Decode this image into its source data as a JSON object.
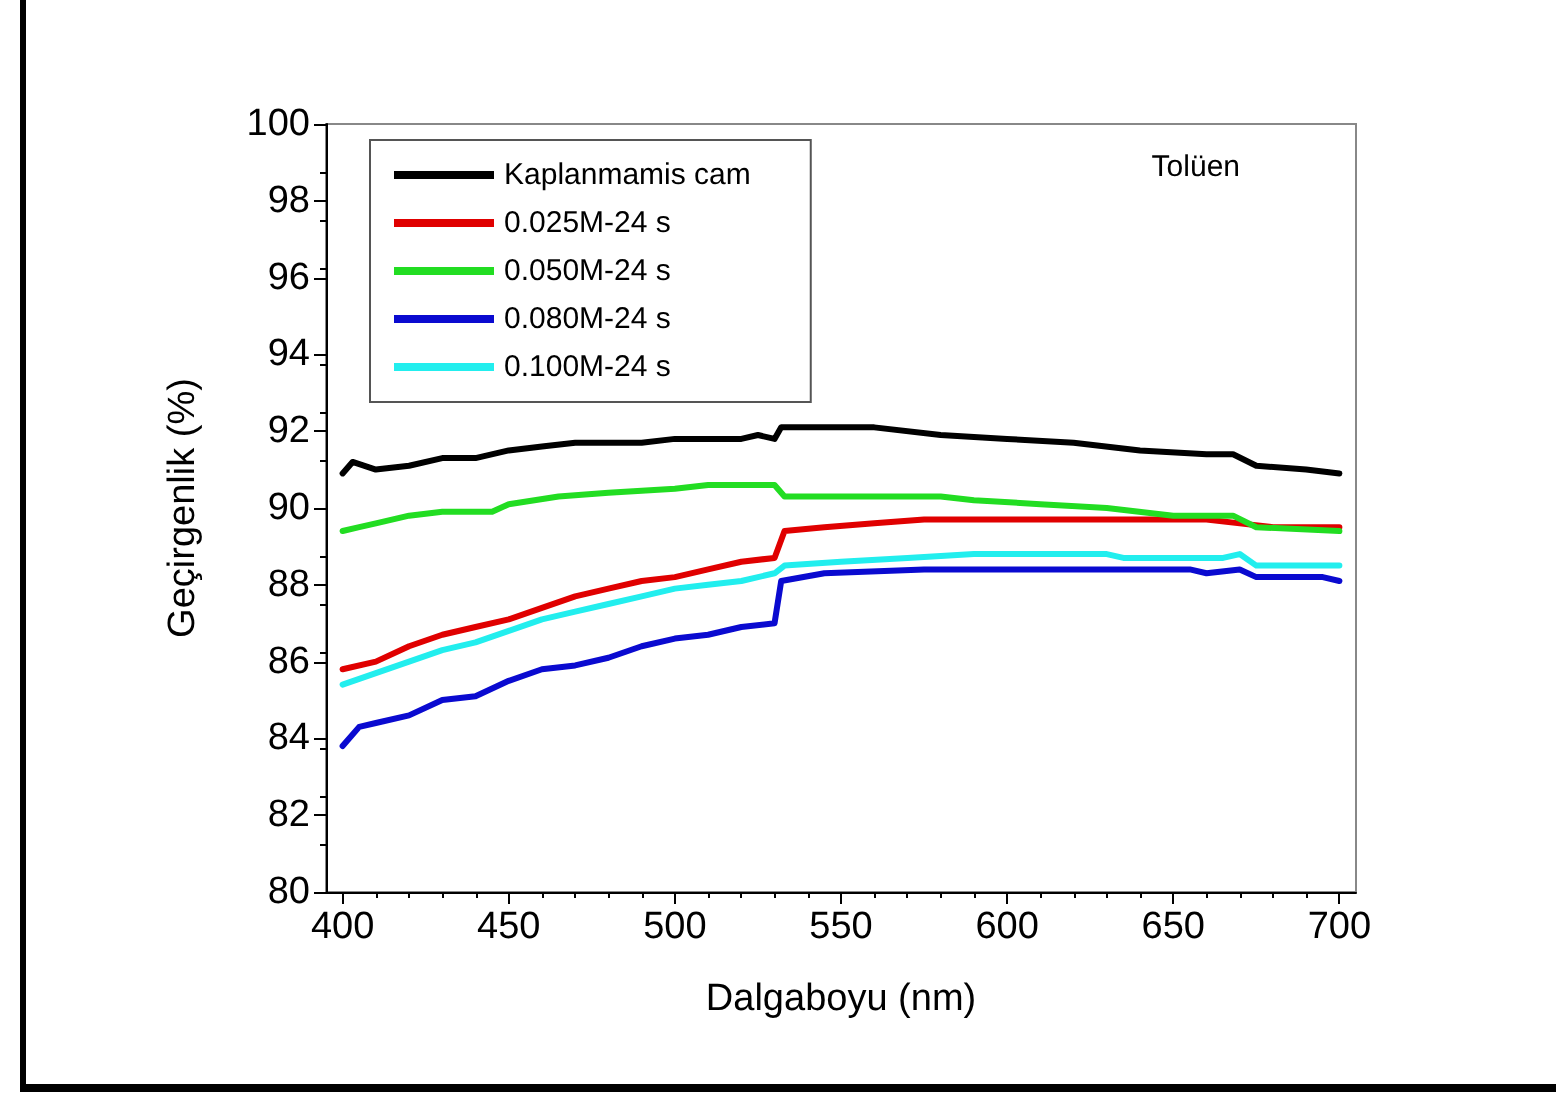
{
  "chart_data": {
    "type": "line",
    "xlabel": "Dalgaboyu (nm)",
    "ylabel": "Geçirgenlik (%)",
    "annotations": [
      "Tolüen"
    ],
    "xlim": [
      395,
      705
    ],
    "xticks": [
      400,
      450,
      500,
      550,
      600,
      650,
      700
    ],
    "ylim": [
      80,
      100
    ],
    "yticks": [
      80,
      82,
      84,
      86,
      88,
      90,
      92,
      94,
      96,
      98,
      100
    ],
    "grid": false,
    "legend": "top left",
    "marker": "none",
    "line_style": "solid",
    "series": [
      {
        "name": "Kaplanmamis cam",
        "color": "#000000",
        "x": [
          400,
          403,
          410,
          420,
          430,
          440,
          450,
          460,
          470,
          490,
          500,
          520,
          525,
          530,
          532,
          560,
          580,
          600,
          620,
          640,
          660,
          668,
          675,
          690,
          700
        ],
        "values": [
          90.9,
          91.2,
          91.0,
          91.1,
          91.3,
          91.3,
          91.5,
          91.6,
          91.7,
          91.7,
          91.8,
          91.8,
          91.9,
          91.8,
          92.1,
          92.1,
          91.9,
          91.8,
          91.7,
          91.5,
          91.4,
          91.4,
          91.1,
          91.0,
          90.9
        ]
      },
      {
        "name": "0.025M-24 s",
        "color": "#e00000",
        "x": [
          400,
          410,
          420,
          430,
          440,
          450,
          460,
          470,
          480,
          490,
          500,
          510,
          520,
          530,
          533,
          545,
          560,
          575,
          600,
          660,
          670,
          680,
          700
        ],
        "values": [
          85.8,
          86.0,
          86.4,
          86.7,
          86.9,
          87.1,
          87.4,
          87.7,
          87.9,
          88.1,
          88.2,
          88.4,
          88.6,
          88.7,
          89.4,
          89.5,
          89.6,
          89.7,
          89.7,
          89.7,
          89.6,
          89.5,
          89.5
        ]
      },
      {
        "name": "0.050M-24 s",
        "color": "#22dd22",
        "x": [
          400,
          405,
          410,
          420,
          430,
          445,
          450,
          465,
          480,
          500,
          510,
          530,
          533,
          580,
          590,
          610,
          630,
          650,
          668,
          675,
          700
        ],
        "values": [
          89.4,
          89.5,
          89.6,
          89.8,
          89.9,
          89.9,
          90.1,
          90.3,
          90.4,
          90.5,
          90.6,
          90.6,
          90.3,
          90.3,
          90.2,
          90.1,
          90.0,
          89.8,
          89.8,
          89.5,
          89.4
        ]
      },
      {
        "name": "0.080M-24 s",
        "color": "#0a0ad0",
        "x": [
          400,
          405,
          410,
          420,
          430,
          440,
          450,
          460,
          470,
          480,
          490,
          500,
          510,
          520,
          530,
          532,
          545,
          575,
          655,
          660,
          670,
          675,
          695,
          700
        ],
        "values": [
          83.8,
          84.3,
          84.4,
          84.6,
          85.0,
          85.1,
          85.5,
          85.8,
          85.9,
          86.1,
          86.4,
          86.6,
          86.7,
          86.9,
          87.0,
          88.1,
          88.3,
          88.4,
          88.4,
          88.3,
          88.4,
          88.2,
          88.2,
          88.1
        ]
      },
      {
        "name": "0.100M-24 s",
        "color": "#22eeee",
        "x": [
          400,
          410,
          420,
          430,
          440,
          450,
          460,
          470,
          480,
          490,
          500,
          510,
          520,
          530,
          533,
          550,
          570,
          590,
          630,
          635,
          665,
          670,
          675,
          700
        ],
        "values": [
          85.4,
          85.7,
          86.0,
          86.3,
          86.5,
          86.8,
          87.1,
          87.3,
          87.5,
          87.7,
          87.9,
          88.0,
          88.1,
          88.3,
          88.5,
          88.6,
          88.7,
          88.8,
          88.8,
          88.7,
          88.7,
          88.8,
          88.5,
          88.5
        ]
      }
    ]
  }
}
